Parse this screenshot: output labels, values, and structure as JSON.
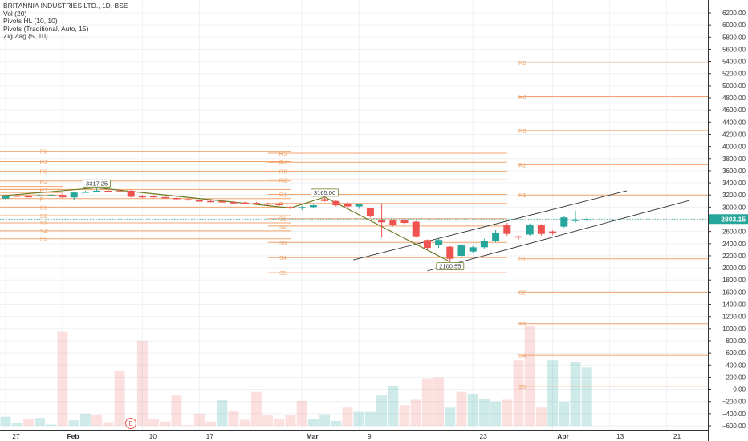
{
  "legend": {
    "symbol_line": "BRITANNIA INDUSTRIES LTD., 1D, BSE",
    "vol_line": "Vol (20)",
    "pivots_hl_line": "Pivots HL (10, 10)",
    "pivots_trad_line": "Pivots (Traditional, Auto, 15)",
    "zigzag_line": "Zig Zag (5, 10)"
  },
  "price_label": "2803.15",
  "earnings_marker": "E",
  "colors": {
    "up": "#26a69a",
    "down": "#ef5350",
    "pivot": "#f0a36c",
    "zigzag": "#6b7a1f",
    "channel": "#333333",
    "price_tag": "#26a69a"
  },
  "chart_data": {
    "type": "candlestick",
    "y_axis": {
      "min": -600,
      "max": 6200,
      "ticks": [
        6200,
        6000,
        5800,
        5600,
        5400,
        5200,
        5000,
        4800,
        4600,
        4400,
        4200,
        4000,
        3800,
        3600,
        3400,
        3200,
        3000,
        2800,
        2600,
        2400,
        2200,
        2000,
        1800,
        1600,
        1400,
        1200,
        1000,
        800,
        600,
        400,
        200,
        0,
        -200,
        -400,
        -600
      ],
      "tick_labels": [
        "6200.00",
        "6000.00",
        "5800.00",
        "5600.00",
        "5400.00",
        "5200.00",
        "5000.00",
        "4800.00",
        "4600.00",
        "4400.00",
        "4200.00",
        "4000.00",
        "3800.00",
        "3600.00",
        "3400.00",
        "3200.00",
        "3000.00",
        "2800.00",
        "2600.00",
        "2400.00",
        "2200.00",
        "2000.00",
        "1800.00",
        "1600.00",
        "1400.00",
        "1200.00",
        "1000.00",
        "800.00",
        "600.00",
        "400.00",
        "200.00",
        "0.00",
        "−200.00",
        "−400.00",
        "−600.00"
      ]
    },
    "x_axis": {
      "labels": [
        {
          "text": "27",
          "day": 0
        },
        {
          "text": "Feb",
          "day": 5
        },
        {
          "text": "10",
          "day": 12
        },
        {
          "text": "17",
          "day": 17
        },
        {
          "text": "Mar",
          "day": 26
        },
        {
          "text": "9",
          "day": 31
        },
        {
          "text": "23",
          "day": 41
        },
        {
          "text": "Apr",
          "day": 48
        },
        {
          "text": "13",
          "day": 53
        },
        {
          "text": "21",
          "day": 58
        }
      ]
    },
    "candles": [
      {
        "day": 0,
        "open": 3140,
        "high": 3170,
        "low": 3120,
        "close": 3180
      },
      {
        "day": 1,
        "open": 3190,
        "high": 3200,
        "low": 3170,
        "close": 3180
      },
      {
        "day": 2,
        "open": 3180,
        "high": 3195,
        "low": 3165,
        "close": 3175
      },
      {
        "day": 3,
        "open": 3190,
        "high": 3205,
        "low": 3180,
        "close": 3195
      },
      {
        "day": 4,
        "open": 3200,
        "high": 3215,
        "low": 3185,
        "close": 3200
      },
      {
        "day": 5,
        "open": 3200,
        "high": 3230,
        "low": 3150,
        "close": 3160
      },
      {
        "day": 6,
        "open": 3160,
        "high": 3250,
        "low": 3110,
        "close": 3240
      },
      {
        "day": 7,
        "open": 3250,
        "high": 3270,
        "low": 3240,
        "close": 3255
      },
      {
        "day": 8,
        "open": 3260,
        "high": 3317,
        "low": 3245,
        "close": 3270
      },
      {
        "day": 9,
        "open": 3270,
        "high": 3290,
        "low": 3255,
        "close": 3265
      },
      {
        "day": 10,
        "open": 3265,
        "high": 3285,
        "low": 3250,
        "close": 3260
      },
      {
        "day": 11,
        "open": 3270,
        "high": 3280,
        "low": 3160,
        "close": 3170
      },
      {
        "day": 12,
        "open": 3180,
        "high": 3200,
        "low": 3150,
        "close": 3160
      },
      {
        "day": 13,
        "open": 3180,
        "high": 3195,
        "low": 3155,
        "close": 3165
      },
      {
        "day": 14,
        "open": 3165,
        "high": 3180,
        "low": 3150,
        "close": 3160
      },
      {
        "day": 15,
        "open": 3150,
        "high": 3160,
        "low": 3120,
        "close": 3130
      },
      {
        "day": 16,
        "open": 3130,
        "high": 3140,
        "low": 3105,
        "close": 3110
      },
      {
        "day": 17,
        "open": 3110,
        "high": 3125,
        "low": 3090,
        "close": 3100
      },
      {
        "day": 18,
        "open": 3100,
        "high": 3110,
        "low": 3080,
        "close": 3095
      },
      {
        "day": 19,
        "open": 3095,
        "high": 3110,
        "low": 3075,
        "close": 3085
      },
      {
        "day": 20,
        "open": 3080,
        "high": 3100,
        "low": 3065,
        "close": 3070
      },
      {
        "day": 21,
        "open": 3075,
        "high": 3090,
        "low": 3060,
        "close": 3065
      },
      {
        "day": 22,
        "open": 3070,
        "high": 3085,
        "low": 3050,
        "close": 3060
      },
      {
        "day": 23,
        "open": 3060,
        "high": 3075,
        "low": 3040,
        "close": 3050
      },
      {
        "day": 24,
        "open": 3050,
        "high": 3065,
        "low": 3030,
        "close": 3045
      },
      {
        "day": 25,
        "open": 3000,
        "high": 3020,
        "low": 2960,
        "close": 2985
      },
      {
        "day": 26,
        "open": 2980,
        "high": 3020,
        "low": 2950,
        "close": 3000
      },
      {
        "day": 27,
        "open": 3000,
        "high": 3040,
        "low": 2990,
        "close": 3030
      },
      {
        "day": 28,
        "open": 3130,
        "high": 3165,
        "low": 3090,
        "close": 3100
      },
      {
        "day": 29,
        "open": 3100,
        "high": 3110,
        "low": 3010,
        "close": 3030
      },
      {
        "day": 30,
        "open": 3060,
        "high": 3080,
        "low": 2990,
        "close": 3010
      },
      {
        "day": 31,
        "open": 3010,
        "high": 3055,
        "low": 2970,
        "close": 3050
      },
      {
        "day": 32,
        "open": 2980,
        "high": 2990,
        "low": 2830,
        "close": 2850
      },
      {
        "day": 33,
        "open": 2780,
        "high": 3060,
        "low": 2500,
        "close": 2750
      },
      {
        "day": 34,
        "open": 2780,
        "high": 2790,
        "low": 2680,
        "close": 2700
      },
      {
        "day": 35,
        "open": 2780,
        "high": 2790,
        "low": 2720,
        "close": 2740
      },
      {
        "day": 36,
        "open": 2760,
        "high": 2775,
        "low": 2500,
        "close": 2520
      },
      {
        "day": 37,
        "open": 2460,
        "high": 2470,
        "low": 2300,
        "close": 2330
      },
      {
        "day": 38,
        "open": 2380,
        "high": 2480,
        "low": 2330,
        "close": 2460
      },
      {
        "day": 39,
        "open": 2350,
        "high": 2360,
        "low": 2100,
        "close": 2150
      },
      {
        "day": 40,
        "open": 2200,
        "high": 2390,
        "low": 2190,
        "close": 2370
      },
      {
        "day": 41,
        "open": 2270,
        "high": 2360,
        "low": 2250,
        "close": 2340
      },
      {
        "day": 42,
        "open": 2340,
        "high": 2480,
        "low": 2320,
        "close": 2450
      },
      {
        "day": 43,
        "open": 2450,
        "high": 2620,
        "low": 2420,
        "close": 2580
      },
      {
        "day": 44,
        "open": 2700,
        "high": 2740,
        "low": 2530,
        "close": 2560
      },
      {
        "day": 45,
        "open": 2520,
        "high": 2540,
        "low": 2460,
        "close": 2500
      },
      {
        "day": 46,
        "open": 2550,
        "high": 2730,
        "low": 2530,
        "close": 2700
      },
      {
        "day": 47,
        "open": 2700,
        "high": 2720,
        "low": 2530,
        "close": 2560
      },
      {
        "day": 48,
        "open": 2600,
        "high": 2620,
        "low": 2540,
        "close": 2570
      },
      {
        "day": 49,
        "open": 2680,
        "high": 2850,
        "low": 2660,
        "close": 2830
      },
      {
        "day": 50,
        "open": 2780,
        "high": 2940,
        "low": 2740,
        "close": 2790
      },
      {
        "day": 51,
        "open": 2790,
        "high": 2840,
        "low": 2760,
        "close": 2800
      }
    ],
    "volumes": [
      {
        "day": 0,
        "value": -450,
        "up": true
      },
      {
        "day": 1,
        "value": -560,
        "up": true
      },
      {
        "day": 2,
        "value": -480,
        "up": false
      },
      {
        "day": 3,
        "value": -470,
        "up": true
      },
      {
        "day": 4,
        "value": -580,
        "up": true
      },
      {
        "day": 5,
        "value": 950,
        "up": false
      },
      {
        "day": 6,
        "value": -510,
        "up": true
      },
      {
        "day": 7,
        "value": -400,
        "up": true
      },
      {
        "day": 8,
        "value": -420,
        "up": false
      },
      {
        "day": 9,
        "value": -540,
        "up": false
      },
      {
        "day": 10,
        "value": 300,
        "up": false
      },
      {
        "day": 11,
        "value": -560,
        "up": false
      },
      {
        "day": 12,
        "value": 800,
        "up": false
      },
      {
        "day": 13,
        "value": -480,
        "up": false
      },
      {
        "day": 14,
        "value": -530,
        "up": false
      },
      {
        "day": 15,
        "value": -100,
        "up": false
      },
      {
        "day": 16,
        "value": -590,
        "up": false
      },
      {
        "day": 17,
        "value": -400,
        "up": false
      },
      {
        "day": 18,
        "value": -530,
        "up": false
      },
      {
        "day": 19,
        "value": -180,
        "up": true
      },
      {
        "day": 20,
        "value": -360,
        "up": false
      },
      {
        "day": 21,
        "value": -500,
        "up": false
      },
      {
        "day": 22,
        "value": -40,
        "up": false
      },
      {
        "day": 23,
        "value": -430,
        "up": false
      },
      {
        "day": 24,
        "value": -480,
        "up": false
      },
      {
        "day": 25,
        "value": -420,
        "up": false
      },
      {
        "day": 26,
        "value": -190,
        "up": false
      },
      {
        "day": 27,
        "value": -490,
        "up": true
      },
      {
        "day": 28,
        "value": -410,
        "up": true
      },
      {
        "day": 29,
        "value": -520,
        "up": true
      },
      {
        "day": 30,
        "value": -300,
        "up": false
      },
      {
        "day": 31,
        "value": -370,
        "up": true
      },
      {
        "day": 32,
        "value": -370,
        "up": true
      },
      {
        "day": 33,
        "value": -100,
        "up": true
      },
      {
        "day": 34,
        "value": 50,
        "up": true
      },
      {
        "day": 35,
        "value": -260,
        "up": false
      },
      {
        "day": 36,
        "value": -170,
        "up": false
      },
      {
        "day": 37,
        "value": 170,
        "up": false
      },
      {
        "day": 38,
        "value": 200,
        "up": false
      },
      {
        "day": 39,
        "value": -300,
        "up": true
      },
      {
        "day": 40,
        "value": -40,
        "up": false
      },
      {
        "day": 41,
        "value": -80,
        "up": true
      },
      {
        "day": 42,
        "value": -150,
        "up": true
      },
      {
        "day": 43,
        "value": -200,
        "up": true
      },
      {
        "day": 44,
        "value": -170,
        "up": false
      },
      {
        "day": 45,
        "value": 480,
        "up": false
      },
      {
        "day": 46,
        "value": 1050,
        "up": false
      },
      {
        "day": 47,
        "value": -300,
        "up": false
      },
      {
        "day": 48,
        "value": 480,
        "up": true
      },
      {
        "day": 49,
        "value": -200,
        "up": true
      },
      {
        "day": 50,
        "value": 450,
        "up": true
      },
      {
        "day": 51,
        "value": 360,
        "up": true
      }
    ],
    "zigzag": [
      {
        "day": -2,
        "price": 3160
      },
      {
        "day": 8,
        "price": 3317.25
      },
      {
        "day": 25,
        "price": 2985
      },
      {
        "day": 28,
        "price": 3165
      },
      {
        "day": 39,
        "price": 2100.55
      }
    ],
    "zigzag_labels": [
      {
        "day": 8,
        "price": 3317.25,
        "text": "3317.25"
      },
      {
        "day": 28,
        "price": 3165,
        "text": "3165.00"
      },
      {
        "day": 39,
        "price": 2100.55,
        "text": "2100.55"
      }
    ],
    "channel_lines": [
      {
        "day1": 30.5,
        "price1": 2130,
        "day2": 54.5,
        "price2": 3270
      },
      {
        "day1": 37,
        "price1": 1950,
        "day2": 60,
        "price2": 3110
      }
    ],
    "pivot_sets": [
      {
        "day_start": -2,
        "day_end": 25,
        "label_day": 3,
        "levels": [
          {
            "name": "R5",
            "price": 3920
          },
          {
            "name": "R4",
            "price": 3750
          },
          {
            "name": "R3",
            "price": 3590
          },
          {
            "name": "R2",
            "price": 3430
          },
          {
            "name": "R1",
            "price": 3290
          },
          {
            "name": "P",
            "price": 3140
          },
          {
            "name": "S1",
            "price": 3000
          },
          {
            "name": "S2",
            "price": 2860
          },
          {
            "name": "S3",
            "price": 2740
          },
          {
            "name": "S4",
            "price": 2610
          },
          {
            "name": "S5",
            "price": 2480
          }
        ]
      },
      {
        "day_start": 23,
        "day_end": 44,
        "label_day": 24,
        "levels": [
          {
            "name": "R5",
            "price": 3890
          },
          {
            "name": "R4",
            "price": 3740
          },
          {
            "name": "R3",
            "price": 3590
          },
          {
            "name": "R2",
            "price": 3450
          },
          {
            "name": "R1",
            "price": 3210
          },
          {
            "name": "P",
            "price": 3060
          },
          {
            "name": "S1",
            "price": 2810
          },
          {
            "name": "S2",
            "price": 2690
          },
          {
            "name": "S3",
            "price": 2420
          },
          {
            "name": "S4",
            "price": 2170
          },
          {
            "name": "S5",
            "price": 1920
          }
        ]
      },
      {
        "day_start": 45,
        "day_end": 72,
        "label_day": 45,
        "levels": [
          {
            "name": "R5",
            "price": 5380
          },
          {
            "name": "R4",
            "price": 4820
          },
          {
            "name": "R3",
            "price": 4260
          },
          {
            "name": "R2",
            "price": 3700
          },
          {
            "name": "R1",
            "price": 3200
          },
          {
            "name": "S1",
            "price": 2150
          },
          {
            "name": "S2",
            "price": 1600
          },
          {
            "name": "S3",
            "price": 1080
          },
          {
            "name": "S4",
            "price": 560
          },
          {
            "name": "S5",
            "price": 50
          }
        ]
      }
    ],
    "extra_pivot_lines": [
      3340,
      3290,
      3240,
      3200
    ],
    "last_price": 2803.15
  }
}
